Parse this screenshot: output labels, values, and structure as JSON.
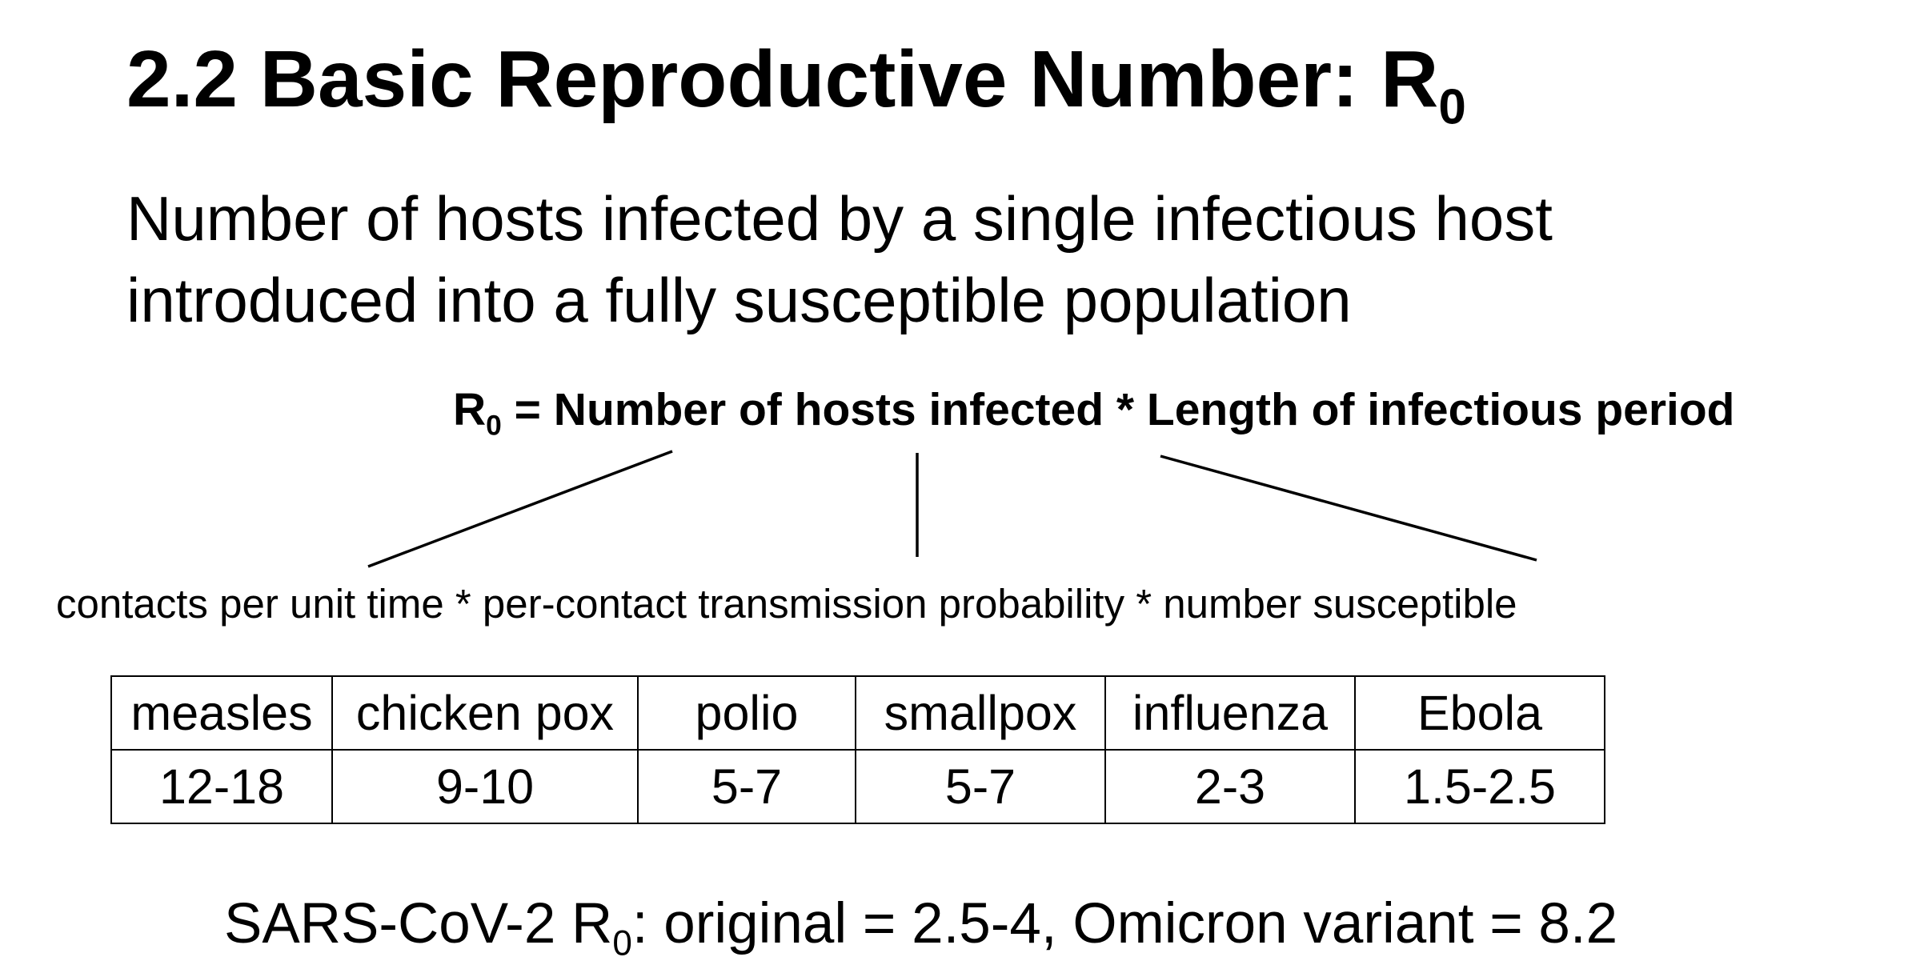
{
  "title": {
    "text": "2.2 Basic Reproductive Number: R",
    "subscript": "0"
  },
  "definition": {
    "line1": "Number of hosts infected by a single infectious host",
    "line2": "introduced into a fully susceptible population"
  },
  "formula": {
    "lhs": "R",
    "lhs_subscript": "0",
    "rhs": " = Number of hosts infected * Length of infectious period"
  },
  "components": {
    "text": "contacts per unit time * per-contact transmission probability * number susceptible"
  },
  "table": {
    "diseases": [
      "measles",
      "chicken pox",
      "polio",
      "smallpox",
      "influenza",
      "Ebola"
    ],
    "r0_values": [
      "12-18",
      "9-10",
      "5-7",
      "5-7",
      "2-3",
      "1.5-2.5"
    ]
  },
  "footer": {
    "prefix": "SARS-CoV-2 R",
    "subscript": "0",
    "suffix": ": original = 2.5-4, Omicron variant = 8.2"
  }
}
